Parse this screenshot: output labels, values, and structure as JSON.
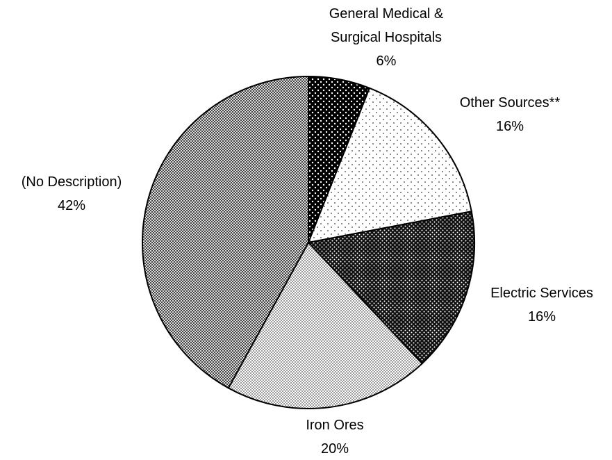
{
  "chart_data": {
    "type": "pie",
    "categories": [
      "General Medical & Surgical Hospitals",
      "Other Sources**",
      "Electric Services",
      "Iron Ores",
      "(No Description)"
    ],
    "values": [
      6,
      16,
      16,
      20,
      42
    ],
    "value_labels": [
      "6%",
      "16%",
      "16%",
      "20%",
      "42%"
    ]
  }
}
